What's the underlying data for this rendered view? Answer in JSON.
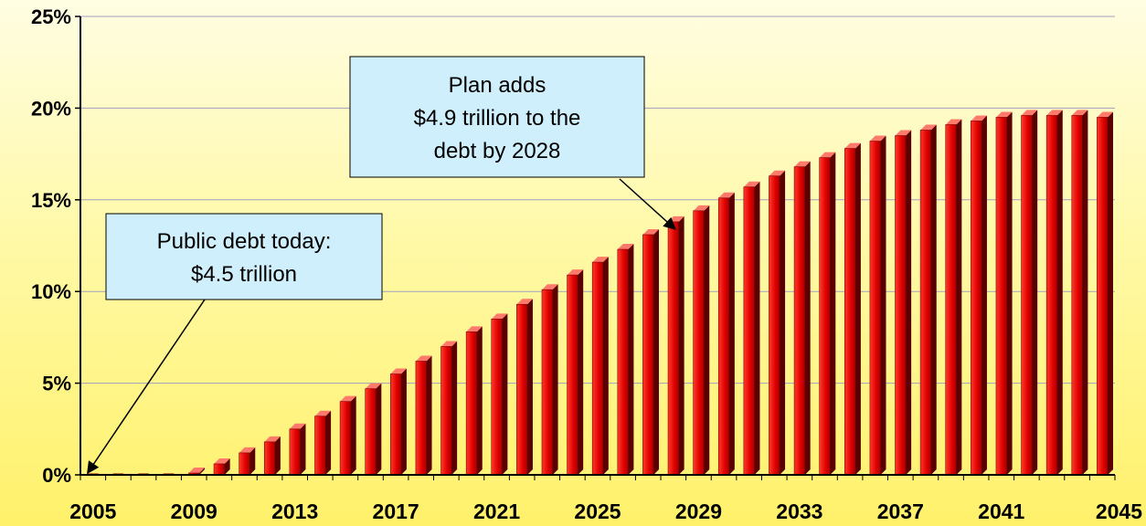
{
  "chart_data": {
    "type": "bar",
    "title": "",
    "xlabel": "",
    "ylabel": "",
    "x": [
      2005,
      2006,
      2007,
      2008,
      2009,
      2010,
      2011,
      2012,
      2013,
      2014,
      2015,
      2016,
      2017,
      2018,
      2019,
      2020,
      2021,
      2022,
      2023,
      2024,
      2025,
      2026,
      2027,
      2028,
      2029,
      2030,
      2031,
      2032,
      2033,
      2034,
      2035,
      2036,
      2037,
      2038,
      2039,
      2040,
      2041,
      2042,
      2043,
      2044,
      2045
    ],
    "values": [
      0,
      0,
      0,
      0,
      0.1,
      0.6,
      1.2,
      1.8,
      2.5,
      3.2,
      4.0,
      4.7,
      5.5,
      6.2,
      7.0,
      7.8,
      8.5,
      9.3,
      10.1,
      10.9,
      11.6,
      12.3,
      13.1,
      13.8,
      14.4,
      15.1,
      15.7,
      16.3,
      16.8,
      17.3,
      17.8,
      18.2,
      18.5,
      18.8,
      19.1,
      19.3,
      19.5,
      19.6,
      19.6,
      19.6,
      19.5
    ],
    "ylim": [
      0,
      25
    ],
    "y_ticks": [
      "0%",
      "5%",
      "10%",
      "15%",
      "20%",
      "25%"
    ],
    "x_tick_labels": [
      "2005",
      "2009",
      "2013",
      "2017",
      "2021",
      "2025",
      "2029",
      "2033",
      "2037",
      "2041",
      "2045"
    ],
    "grid": true,
    "colors": {
      "bar": "#e00000",
      "bar_dark": "#5a0000",
      "bar_top": "#ff7a6a",
      "grid": "#a0a0c0",
      "callout_fill": "#cfeffc"
    },
    "annotations": [
      {
        "lines": [
          "Public debt today:",
          "$4.5 trillion"
        ],
        "points_to_year": 2005
      },
      {
        "lines": [
          "Plan adds",
          "$4.9 trillion to the",
          "debt by 2028"
        ],
        "points_to_year": 2028
      }
    ]
  }
}
